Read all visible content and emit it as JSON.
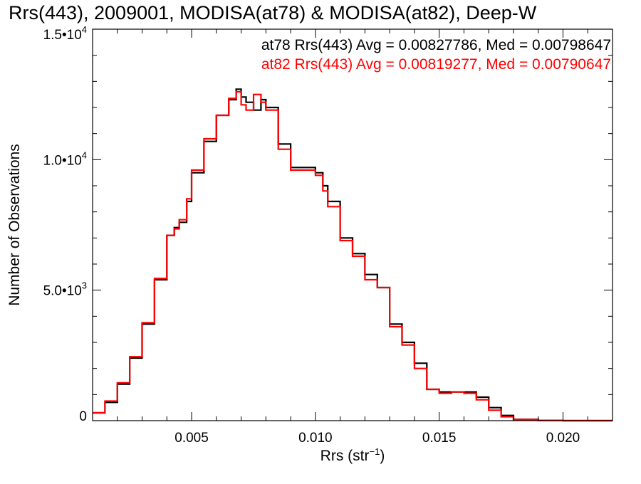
{
  "chart_data": {
    "type": "line",
    "step": true,
    "title": "Rrs(443), 2009001, MODISA(at78) & MODISA(at82), Deep-W",
    "xlabel": {
      "base": "Rrs (str",
      "exp": "−1",
      "close": ")"
    },
    "ylabel": "Number of Observations",
    "xlim": [
      0.001,
      0.022
    ],
    "ylim": [
      0,
      15000
    ],
    "xticks": [
      {
        "value": 0.005,
        "label": "0.005"
      },
      {
        "value": 0.01,
        "label": "0.010"
      },
      {
        "value": 0.015,
        "label": "0.015"
      },
      {
        "value": 0.02,
        "label": "0.020"
      }
    ],
    "yticks": [
      {
        "value": 0,
        "label": "0",
        "exp": ""
      },
      {
        "value": 5000,
        "label": "5.0•10",
        "exp": "3"
      },
      {
        "value": 10000,
        "label": "1.0•10",
        "exp": "4"
      },
      {
        "value": 15000,
        "label": "1.5•10",
        "exp": "4"
      }
    ],
    "grid": false,
    "legend_position": "top-right",
    "series": [
      {
        "name": "at78",
        "legend_text": "at78 Rrs(443) Avg = 0.00827786, Med = 0.00798647",
        "color": "#000000",
        "x": [
          0.001,
          0.0015,
          0.002,
          0.0025,
          0.003,
          0.0035,
          0.004,
          0.0043,
          0.0045,
          0.0048,
          0.005,
          0.0055,
          0.006,
          0.0065,
          0.0068,
          0.007,
          0.0072,
          0.0075,
          0.0078,
          0.008,
          0.0085,
          0.009,
          0.0095,
          0.01,
          0.0103,
          0.0105,
          0.011,
          0.0115,
          0.012,
          0.0125,
          0.013,
          0.0135,
          0.014,
          0.0145,
          0.015,
          0.0155,
          0.016,
          0.0165,
          0.017,
          0.0175,
          0.018,
          0.019,
          0.02,
          0.021,
          0.022
        ],
        "y": [
          300,
          700,
          1400,
          2400,
          3700,
          5400,
          7100,
          7400,
          7600,
          8400,
          9500,
          10700,
          11700,
          12300,
          12700,
          12400,
          12200,
          11900,
          12300,
          12000,
          10600,
          9700,
          9700,
          9500,
          9000,
          8400,
          7000,
          6400,
          5600,
          5100,
          3700,
          3000,
          2200,
          1200,
          1100,
          1100,
          1100,
          900,
          500,
          200,
          50,
          10,
          0,
          0,
          0
        ]
      },
      {
        "name": "at82",
        "legend_text": "at82 Rrs(443) Avg = 0.00819277, Med = 0.00790647",
        "color": "#ff0000",
        "x": [
          0.001,
          0.0015,
          0.002,
          0.0025,
          0.003,
          0.0035,
          0.004,
          0.0043,
          0.0045,
          0.0048,
          0.005,
          0.0055,
          0.006,
          0.0065,
          0.0068,
          0.007,
          0.0072,
          0.0075,
          0.0078,
          0.008,
          0.0085,
          0.009,
          0.0095,
          0.01,
          0.0103,
          0.0105,
          0.011,
          0.0115,
          0.012,
          0.0125,
          0.013,
          0.0135,
          0.014,
          0.0145,
          0.015,
          0.0155,
          0.016,
          0.0165,
          0.017,
          0.0175,
          0.018,
          0.019,
          0.02,
          0.021,
          0.022
        ],
        "y": [
          300,
          750,
          1450,
          2450,
          3750,
          5450,
          7100,
          7350,
          7700,
          8500,
          9600,
          10800,
          11700,
          12350,
          12600,
          12100,
          11900,
          12500,
          12200,
          11900,
          10400,
          9600,
          9600,
          9400,
          8800,
          8200,
          6900,
          6300,
          5400,
          5100,
          3600,
          2900,
          2000,
          1200,
          1050,
          1100,
          1050,
          800,
          400,
          150,
          40,
          10,
          0,
          0,
          0
        ]
      }
    ]
  }
}
